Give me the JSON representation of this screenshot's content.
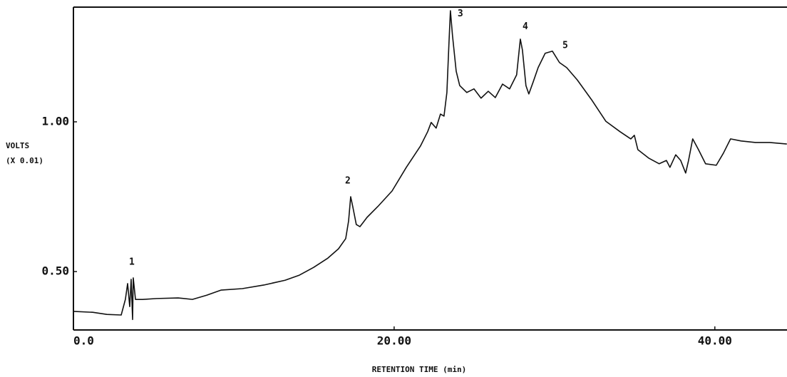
{
  "chart_data": {
    "type": "line",
    "x_label": "RETENTION TIME (min)",
    "y_label": "VOLTS",
    "y_label_unit": "(X 0.01)",
    "xlim": [
      0,
      44.5
    ],
    "ylim": [
      0.305,
      1.383
    ],
    "xticks": [
      {
        "value": 0,
        "label": "0.0"
      },
      {
        "value": 20,
        "label": "20.00"
      },
      {
        "value": 40,
        "label": "40.00"
      }
    ],
    "yticks": [
      {
        "value": 0.5,
        "label": "0.50"
      },
      {
        "value": 1,
        "label": "1.00"
      }
    ],
    "color": "#111111",
    "x": [
      0,
      1.2,
      2.09,
      2.98,
      3.24,
      3.38,
      3.51,
      3.6,
      3.69,
      3.73,
      3.87,
      4.31,
      5.2,
      6.53,
      7.42,
      8.31,
      9.2,
      10.53,
      11.87,
      13.2,
      14.09,
      14.98,
      15.87,
      16.53,
      16.98,
      17.16,
      17.29,
      17.42,
      17.64,
      17.87,
      18.31,
      18.98,
      19.87,
      20.76,
      21.64,
      22.09,
      22.31,
      22.62,
      22.89,
      23.11,
      23.29,
      23.42,
      23.51,
      23.64,
      23.87,
      24.09,
      24.53,
      24.98,
      25.42,
      25.87,
      26.31,
      26.76,
      27.2,
      27.64,
      27.87,
      28.0,
      28.22,
      28.4,
      28.67,
      28.98,
      29.42,
      29.87,
      30.31,
      30.76,
      31.42,
      32.31,
      33.2,
      34.09,
      34.76,
      34.98,
      35.2,
      35.87,
      36.53,
      36.98,
      37.2,
      37.56,
      37.87,
      38.18,
      38.36,
      38.62,
      38.98,
      39.42,
      40.09,
      40.53,
      40.98,
      41.64,
      42.53,
      43.42,
      44.49
    ],
    "values": [
      0.367,
      0.364,
      0.357,
      0.355,
      0.407,
      0.46,
      0.383,
      0.474,
      0.34,
      0.479,
      0.407,
      0.407,
      0.41,
      0.412,
      0.407,
      0.421,
      0.438,
      0.443,
      0.455,
      0.471,
      0.488,
      0.514,
      0.545,
      0.576,
      0.61,
      0.669,
      0.75,
      0.717,
      0.657,
      0.65,
      0.681,
      0.717,
      0.769,
      0.848,
      0.919,
      0.967,
      0.998,
      0.979,
      1.026,
      1.019,
      1.098,
      1.264,
      1.371,
      1.288,
      1.169,
      1.121,
      1.098,
      1.11,
      1.079,
      1.102,
      1.081,
      1.126,
      1.11,
      1.157,
      1.276,
      1.24,
      1.121,
      1.093,
      1.133,
      1.181,
      1.229,
      1.236,
      1.198,
      1.181,
      1.14,
      1.074,
      1.002,
      0.967,
      0.943,
      0.955,
      0.907,
      0.879,
      0.86,
      0.871,
      0.848,
      0.89,
      0.871,
      0.829,
      0.871,
      0.943,
      0.907,
      0.86,
      0.855,
      0.895,
      0.943,
      0.936,
      0.931,
      0.931,
      0.926
    ],
    "annotations": [
      {
        "text": "1",
        "x": 3.64,
        "y": 0.531
      },
      {
        "text": "2",
        "x": 17.11,
        "y": 0.802
      },
      {
        "text": "3",
        "x": 24.13,
        "y": 1.36
      },
      {
        "text": "4",
        "x": 28.18,
        "y": 1.317
      },
      {
        "text": "5",
        "x": 30.67,
        "y": 1.255
      }
    ]
  }
}
